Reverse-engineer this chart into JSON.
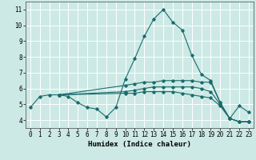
{
  "xlabel": "Humidex (Indice chaleur)",
  "background_color": "#cce9e5",
  "grid_color": "#ffffff",
  "line_color": "#1a6b6b",
  "xlim": [
    -0.5,
    23.5
  ],
  "ylim": [
    3.5,
    11.5
  ],
  "xticks": [
    0,
    1,
    2,
    3,
    4,
    5,
    6,
    7,
    8,
    9,
    10,
    11,
    12,
    13,
    14,
    15,
    16,
    17,
    18,
    19,
    20,
    21,
    22,
    23
  ],
  "yticks": [
    4,
    5,
    6,
    7,
    8,
    9,
    10,
    11
  ],
  "lines": [
    {
      "x": [
        0,
        1,
        2,
        3,
        4,
        5,
        6,
        7,
        8,
        9,
        10,
        11,
        12,
        13,
        14,
        15,
        16,
        17,
        18,
        19,
        20,
        21,
        22,
        23
      ],
      "y": [
        4.8,
        5.5,
        5.6,
        5.6,
        5.5,
        5.1,
        4.8,
        4.7,
        4.2,
        4.8,
        6.6,
        7.9,
        9.3,
        10.4,
        11.0,
        10.2,
        9.7,
        8.1,
        6.9,
        6.5,
        5.1,
        4.1,
        4.9,
        4.5
      ]
    },
    {
      "x": [
        3,
        10,
        11,
        12,
        13,
        14,
        15,
        16,
        17,
        18,
        19,
        20,
        21,
        22,
        23
      ],
      "y": [
        5.6,
        6.2,
        6.3,
        6.4,
        6.4,
        6.5,
        6.5,
        6.5,
        6.5,
        6.4,
        6.4,
        5.1,
        4.1,
        3.9,
        3.9
      ]
    },
    {
      "x": [
        3,
        10,
        11,
        12,
        13,
        14,
        15,
        16,
        17,
        18,
        19,
        20,
        21,
        22,
        23
      ],
      "y": [
        5.6,
        5.8,
        5.9,
        6.0,
        6.1,
        6.1,
        6.1,
        6.1,
        6.1,
        6.0,
        5.8,
        5.0,
        4.1,
        3.9,
        3.9
      ]
    },
    {
      "x": [
        3,
        10,
        11,
        12,
        13,
        14,
        15,
        16,
        17,
        18,
        19,
        20,
        21,
        22,
        23
      ],
      "y": [
        5.6,
        5.7,
        5.7,
        5.8,
        5.8,
        5.8,
        5.8,
        5.7,
        5.6,
        5.5,
        5.4,
        4.9,
        4.1,
        3.9,
        3.9
      ]
    }
  ]
}
